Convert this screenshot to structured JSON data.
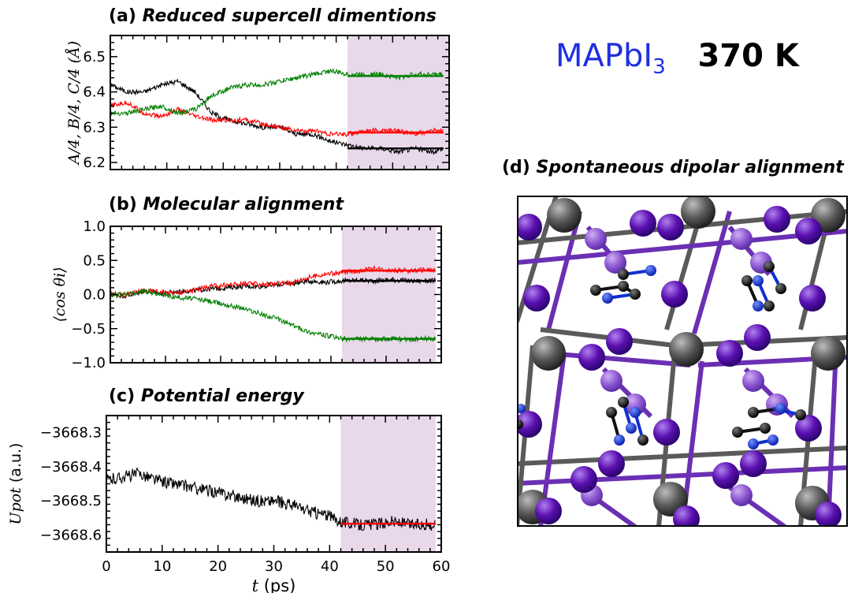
{
  "header": {
    "compound": "MAPbI",
    "compound_sub": "3",
    "temperature": "370 K"
  },
  "colors": {
    "black": "#000000",
    "red": "#ff0000",
    "green": "#008000",
    "shade": "#e9d8ea",
    "compound": "#1f2fe0",
    "iodine": "#5b10b0",
    "lead": "#5a5a5a"
  },
  "panel_d": {
    "tag": "(d)",
    "title": "Spontaneous dipolar alignment"
  },
  "chart_data": [
    {
      "id": "a",
      "type": "line",
      "tag": "(a)",
      "title": "Reduced supercell dimentions",
      "ylabel": "A/4, B/4, C/4 (Å)",
      "xlim": [
        0,
        60
      ],
      "ylim": [
        6.18,
        6.56
      ],
      "yticks": [
        6.2,
        6.3,
        6.4,
        6.5
      ],
      "ytick_labels": [
        "6.2",
        "6.3",
        "6.4",
        "6.5"
      ],
      "shade": [
        42,
        60
      ],
      "series": [
        {
          "color": "black",
          "trace": [
            [
              0,
              6.42
            ],
            [
              3,
              6.4
            ],
            [
              6,
              6.4
            ],
            [
              9,
              6.42
            ],
            [
              12,
              6.43
            ],
            [
              15,
              6.4
            ],
            [
              18,
              6.34
            ],
            [
              21,
              6.32
            ],
            [
              24,
              6.31
            ],
            [
              27,
              6.3
            ],
            [
              30,
              6.3
            ],
            [
              33,
              6.28
            ],
            [
              36,
              6.28
            ],
            [
              39,
              6.26
            ],
            [
              42,
              6.25
            ],
            [
              45,
              6.24
            ],
            [
              48,
              6.24
            ],
            [
              51,
              6.23
            ],
            [
              54,
              6.24
            ],
            [
              57,
              6.23
            ],
            [
              59,
              6.24
            ]
          ],
          "mean": 6.24
        },
        {
          "color": "red",
          "trace": [
            [
              0,
              6.36
            ],
            [
              3,
              6.37
            ],
            [
              6,
              6.34
            ],
            [
              9,
              6.33
            ],
            [
              12,
              6.35
            ],
            [
              15,
              6.33
            ],
            [
              18,
              6.32
            ],
            [
              21,
              6.32
            ],
            [
              24,
              6.32
            ],
            [
              27,
              6.31
            ],
            [
              30,
              6.3
            ],
            [
              33,
              6.29
            ],
            [
              36,
              6.29
            ],
            [
              39,
              6.28
            ],
            [
              42,
              6.28
            ],
            [
              45,
              6.29
            ],
            [
              48,
              6.29
            ],
            [
              51,
              6.29
            ],
            [
              54,
              6.28
            ],
            [
              57,
              6.29
            ],
            [
              59,
              6.29
            ]
          ],
          "mean": 6.285
        },
        {
          "color": "green",
          "trace": [
            [
              0,
              6.34
            ],
            [
              3,
              6.34
            ],
            [
              6,
              6.35
            ],
            [
              9,
              6.36
            ],
            [
              12,
              6.34
            ],
            [
              15,
              6.35
            ],
            [
              18,
              6.39
            ],
            [
              21,
              6.41
            ],
            [
              24,
              6.42
            ],
            [
              27,
              6.42
            ],
            [
              30,
              6.43
            ],
            [
              33,
              6.44
            ],
            [
              36,
              6.45
            ],
            [
              39,
              6.46
            ],
            [
              42,
              6.45
            ],
            [
              45,
              6.45
            ],
            [
              48,
              6.45
            ],
            [
              51,
              6.44
            ],
            [
              54,
              6.45
            ],
            [
              57,
              6.45
            ],
            [
              59,
              6.45
            ]
          ],
          "mean": 6.445
        }
      ]
    },
    {
      "id": "b",
      "type": "line",
      "tag": "(b)",
      "title": "Molecular alignment",
      "ylabel": "⟨cos θi⟩",
      "xlim": [
        0,
        60
      ],
      "ylim": [
        -1.0,
        1.0
      ],
      "yticks": [
        -1.0,
        -0.5,
        0.0,
        0.5,
        1.0
      ],
      "ytick_labels": [
        "−1.0",
        "−0.5",
        "0.0",
        "0.5",
        "1.0"
      ],
      "shade": [
        42,
        59
      ],
      "series": [
        {
          "color": "black",
          "trace": [
            [
              0,
              0.0
            ],
            [
              3,
              -0.02
            ],
            [
              6,
              0.05
            ],
            [
              9,
              0.02
            ],
            [
              12,
              0.04
            ],
            [
              15,
              0.06
            ],
            [
              18,
              0.08
            ],
            [
              21,
              0.1
            ],
            [
              24,
              0.12
            ],
            [
              27,
              0.12
            ],
            [
              30,
              0.14
            ],
            [
              33,
              0.16
            ],
            [
              36,
              0.2
            ],
            [
              39,
              0.18
            ],
            [
              42,
              0.2
            ],
            [
              45,
              0.21
            ],
            [
              48,
              0.2
            ],
            [
              51,
              0.22
            ],
            [
              54,
              0.2
            ],
            [
              57,
              0.2
            ],
            [
              59,
              0.2
            ]
          ],
          "mean": 0.2
        },
        {
          "color": "red",
          "trace": [
            [
              0,
              0.0
            ],
            [
              3,
              0.0
            ],
            [
              6,
              0.06
            ],
            [
              9,
              0.04
            ],
            [
              12,
              0.02
            ],
            [
              15,
              0.06
            ],
            [
              18,
              0.12
            ],
            [
              21,
              0.14
            ],
            [
              24,
              0.16
            ],
            [
              27,
              0.15
            ],
            [
              30,
              0.16
            ],
            [
              33,
              0.18
            ],
            [
              36,
              0.25
            ],
            [
              39,
              0.3
            ],
            [
              42,
              0.32
            ],
            [
              45,
              0.35
            ],
            [
              48,
              0.38
            ],
            [
              51,
              0.36
            ],
            [
              54,
              0.35
            ],
            [
              57,
              0.36
            ],
            [
              59,
              0.35
            ]
          ],
          "mean": 0.35
        },
        {
          "color": "green",
          "trace": [
            [
              0,
              0.0
            ],
            [
              3,
              0.0
            ],
            [
              6,
              0.05
            ],
            [
              9,
              0.0
            ],
            [
              12,
              -0.04
            ],
            [
              15,
              -0.06
            ],
            [
              18,
              -0.1
            ],
            [
              21,
              -0.15
            ],
            [
              24,
              -0.2
            ],
            [
              27,
              -0.28
            ],
            [
              30,
              -0.35
            ],
            [
              33,
              -0.45
            ],
            [
              36,
              -0.55
            ],
            [
              39,
              -0.6
            ],
            [
              42,
              -0.65
            ],
            [
              45,
              -0.65
            ],
            [
              48,
              -0.66
            ],
            [
              51,
              -0.65
            ],
            [
              54,
              -0.66
            ],
            [
              57,
              -0.65
            ],
            [
              59,
              -0.65
            ]
          ],
          "mean": -0.65
        }
      ]
    },
    {
      "id": "c",
      "type": "line",
      "tag": "(c)",
      "title": "Potential energy",
      "ylabel": "Upot",
      "ylabel_unit": "(a.u.)",
      "xlabel": "t",
      "xlabel_unit": "(ps)",
      "xlim": [
        0,
        60
      ],
      "ylim": [
        -3668.65,
        -3668.25
      ],
      "xticks": [
        0,
        10,
        20,
        30,
        40,
        50,
        60
      ],
      "xtick_labels": [
        "0",
        "10",
        "20",
        "30",
        "40",
        "50",
        "60"
      ],
      "yticks": [
        -3668.6,
        -3668.5,
        -3668.4,
        -3668.3
      ],
      "ytick_labels": [
        "−3668.6",
        "−3668.5",
        "−3668.4",
        "−3668.3"
      ],
      "shade": [
        42,
        59
      ],
      "series": [
        {
          "color": "black",
          "trace": [
            [
              0,
              -3668.44
            ],
            [
              3,
              -3668.43
            ],
            [
              6,
              -3668.42
            ],
            [
              9,
              -3668.44
            ],
            [
              12,
              -3668.45
            ],
            [
              15,
              -3668.46
            ],
            [
              18,
              -3668.47
            ],
            [
              21,
              -3668.48
            ],
            [
              24,
              -3668.49
            ],
            [
              27,
              -3668.5
            ],
            [
              30,
              -3668.5
            ],
            [
              33,
              -3668.51
            ],
            [
              36,
              -3668.53
            ],
            [
              39,
              -3668.54
            ],
            [
              42,
              -3668.56
            ],
            [
              45,
              -3668.57
            ],
            [
              48,
              -3668.57
            ],
            [
              51,
              -3668.56
            ],
            [
              54,
              -3668.57
            ],
            [
              57,
              -3668.57
            ],
            [
              59,
              -3668.57
            ]
          ],
          "mean": -3668.567
        },
        {
          "color": "red",
          "trace": [],
          "mean": -3668.567
        }
      ]
    }
  ]
}
